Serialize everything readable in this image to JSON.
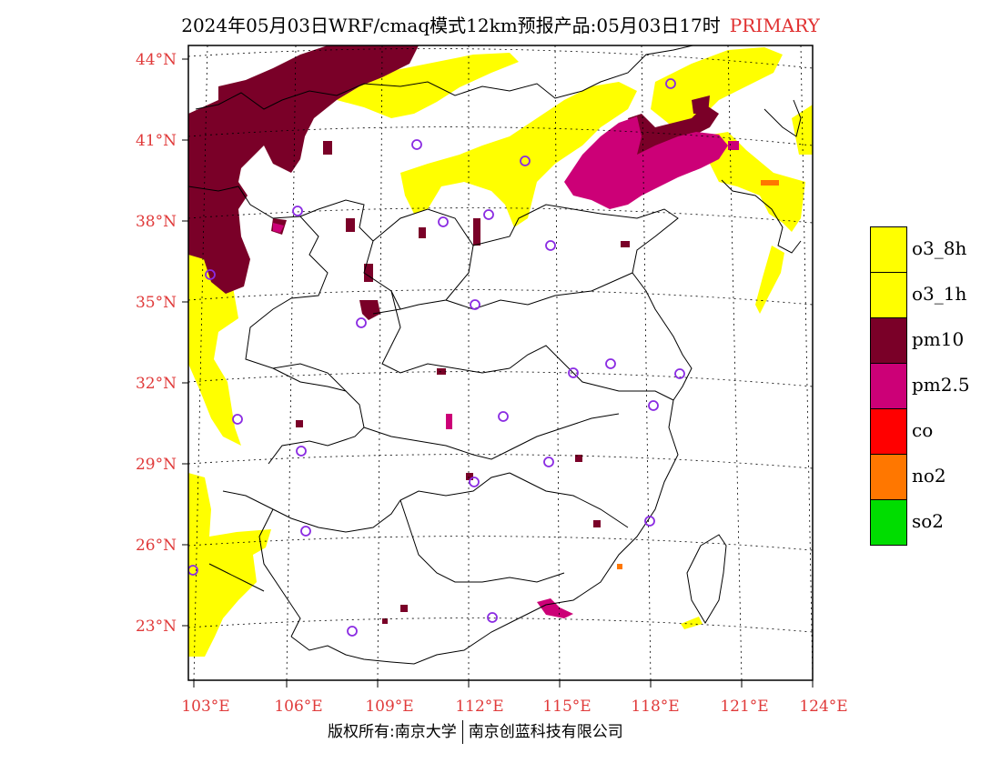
{
  "title": {
    "main": "2024年05月03日WRF/cmaq模式12km预报产品:05月03日17时",
    "tag": "PRIMARY"
  },
  "axes": {
    "lat_labels": [
      "44°N",
      "41°N",
      "38°N",
      "35°N",
      "32°N",
      "29°N",
      "26°N",
      "23°N"
    ],
    "lon_labels": [
      "103°E",
      "106°E",
      "109°E",
      "112°E",
      "115°E",
      "118°E",
      "121°E",
      "124°E"
    ]
  },
  "legend": [
    {
      "label": "o3_8h",
      "color": "#ffff00"
    },
    {
      "label": "o3_1h",
      "color": "#ffff00"
    },
    {
      "label": "pm10",
      "color": "#7a0028"
    },
    {
      "label": "pm2.5",
      "color": "#cc0077"
    },
    {
      "label": "co",
      "color": "#ff0000"
    },
    {
      "label": "no2",
      "color": "#ff7700"
    },
    {
      "label": "so2",
      "color": "#00dd00"
    }
  ],
  "footer": {
    "left": "版权所有:南京大学",
    "right": "南京创蓝科技有限公司"
  },
  "colors": {
    "axis_label": "#e03a3a",
    "station_marker": "#8a2be2"
  }
}
